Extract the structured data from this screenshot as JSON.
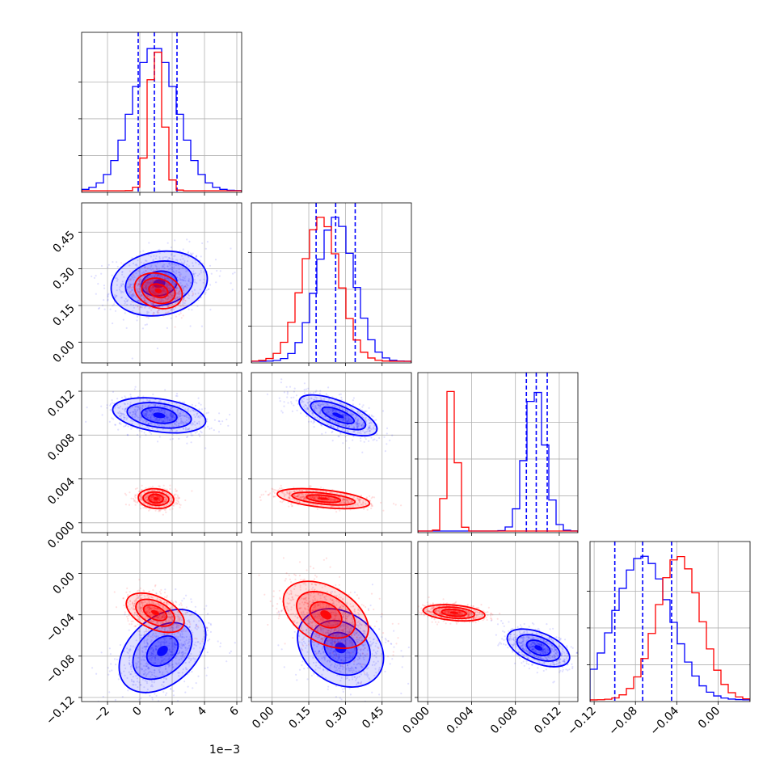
{
  "chart_data": {
    "type": "corner",
    "parameters": [
      {
        "ticks": [
          -2,
          0,
          2,
          4,
          6
        ],
        "tick_labels": [
          "−2",
          "0",
          "2",
          "4",
          "6"
        ],
        "range": [
          -3.6,
          6.3
        ],
        "offset_label": "1e−3"
      },
      {
        "ticks": [
          0.0,
          0.15,
          0.3,
          0.45
        ],
        "tick_labels": [
          "0.00",
          "0.15",
          "0.30",
          "0.45"
        ],
        "range": [
          -0.085,
          0.57
        ]
      },
      {
        "ticks": [
          0.0,
          0.004,
          0.008,
          0.012
        ],
        "tick_labels": [
          "0.000",
          "0.004",
          "0.008",
          "0.012"
        ],
        "range": [
          -0.0009,
          0.0137
        ]
      },
      {
        "ticks": [
          -0.12,
          -0.08,
          -0.04,
          0.0
        ],
        "tick_labels": [
          "−0.12",
          "−0.08",
          "−0.04",
          "0.00"
        ],
        "range": [
          -0.124,
          0.031
        ]
      }
    ],
    "grid": true,
    "series": [
      {
        "color": "#0000ff",
        "means": [
          0.9,
          0.26,
          0.0098,
          -0.073
        ],
        "sigmas": [
          1.4,
          0.075,
          0.0009,
          0.027
        ],
        "quantiles": [
          [
            -0.1,
            0.9,
            2.3
          ],
          [
            0.18,
            0.26,
            0.34
          ],
          [
            0.009,
            0.0099,
            0.0109
          ],
          [
            -0.1,
            -0.073,
            -0.045
          ]
        ],
        "contours": {
          "0_1": {
            "center": [
              1.2,
              0.24
            ],
            "angle": 10,
            "rx": [
              1.1,
              2.1,
              3.0
            ],
            "ry": [
              0.05,
              0.09,
              0.13
            ]
          },
          "0_2": {
            "center": [
              1.2,
              0.0098
            ],
            "angle": -8,
            "rx": [
              1.1,
              2.0,
              2.9
            ],
            "ry": [
              0.0007,
              0.0011,
              0.0015
            ]
          },
          "1_2": {
            "center": [
              0.27,
              0.0098
            ],
            "angle": -22,
            "rx": [
              0.07,
              0.12,
              0.17
            ],
            "ry": [
              0.0005,
              0.0009,
              0.0013
            ]
          },
          "0_3": {
            "center": [
              1.4,
              -0.075
            ],
            "angle": 42,
            "rx": [
              1.1,
              2.1,
              3.1
            ],
            "ry": [
              0.012,
              0.022,
              0.032
            ]
          },
          "1_3": {
            "center": [
              0.28,
              -0.072
            ],
            "angle": -35,
            "rx": [
              0.07,
              0.13,
              0.19
            ],
            "ry": [
              0.014,
              0.024,
              0.034
            ]
          },
          "2_3": {
            "center": [
              0.0101,
              -0.072
            ],
            "angle": 68,
            "rx": [
              0.0006,
              0.001,
              0.0014
            ],
            "ry": [
              0.012,
              0.022,
              0.032
            ]
          }
        }
      },
      {
        "color": "#ff0000",
        "means": [
          1.0,
          0.2,
          0.0022,
          -0.038
        ],
        "sigmas": [
          0.45,
          0.075,
          0.00045,
          0.021
        ],
        "quantiles": [],
        "contours": {
          "0_1": {
            "center": [
              1.15,
              0.21
            ],
            "angle": 72,
            "rx": [
              0.4,
              0.75,
              1.05
            ],
            "ry": [
              0.04,
              0.07,
              0.1
            ]
          },
          "0_2": {
            "center": [
              1.0,
              0.0022
            ],
            "angle": -5,
            "rx": [
              0.45,
              0.8,
              1.1
            ],
            "ry": [
              0.0004,
              0.0006,
              0.0009
            ]
          },
          "1_2": {
            "center": [
              0.21,
              0.0022
            ],
            "angle": -6,
            "rx": [
              0.07,
              0.13,
              0.19
            ],
            "ry": [
              0.0003,
              0.0005,
              0.0008
            ]
          },
          "0_3": {
            "center": [
              0.95,
              -0.038
            ],
            "angle": 65,
            "rx": [
              0.4,
              0.7,
              1.0
            ],
            "ry": [
              0.012,
              0.02,
              0.03
            ]
          },
          "1_3": {
            "center": [
              0.22,
              -0.04
            ],
            "angle": -30,
            "rx": [
              0.07,
              0.13,
              0.19
            ],
            "ry": [
              0.011,
              0.019,
              0.027
            ]
          },
          "2_3": {
            "center": [
              0.0024,
              -0.038
            ],
            "angle": 85,
            "rx": [
              0.0003,
              0.0005,
              0.0007
            ],
            "ry": [
              0.012,
              0.02,
              0.03
            ]
          }
        }
      }
    ]
  }
}
